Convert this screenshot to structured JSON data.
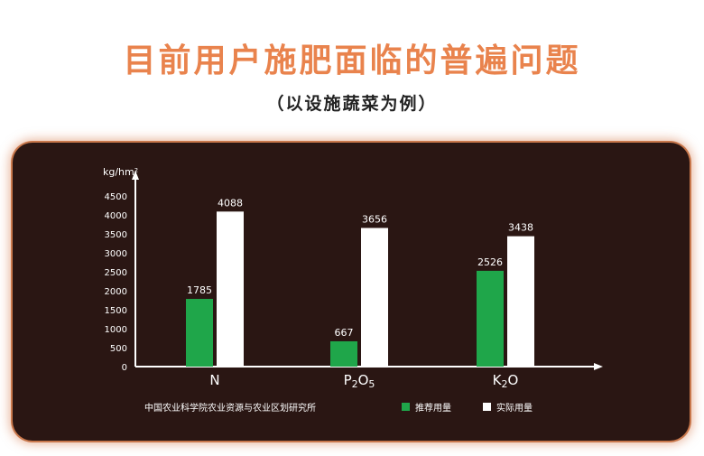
{
  "title": "目前用户施肥面临的普遍问题",
  "subtitle": "（以设施蔬菜为例）",
  "source": "中国农业科学院农业资源与农业区划研究所",
  "colors": {
    "recommended": "#1fa64a",
    "actual": "#ffffff",
    "axis": "#ffffff",
    "title": "#e9834d"
  },
  "chart_data": {
    "type": "bar",
    "ylabel": "kg/hm²",
    "ylim": [
      0,
      4500
    ],
    "yticks": [
      0,
      500,
      1000,
      1500,
      2000,
      2500,
      3000,
      3500,
      4000,
      4500
    ],
    "categories": [
      {
        "base": "N",
        "sub": ""
      },
      {
        "base": "P",
        "sub": "2",
        "base2": "O",
        "sub2": "5"
      },
      {
        "base": "K",
        "sub": "2",
        "base2": "O",
        "sub2": ""
      }
    ],
    "series": [
      {
        "name": "推荐用量",
        "values": [
          1785,
          667,
          2526
        ]
      },
      {
        "name": "实际用量",
        "values": [
          4088,
          3656,
          3438
        ]
      }
    ]
  }
}
